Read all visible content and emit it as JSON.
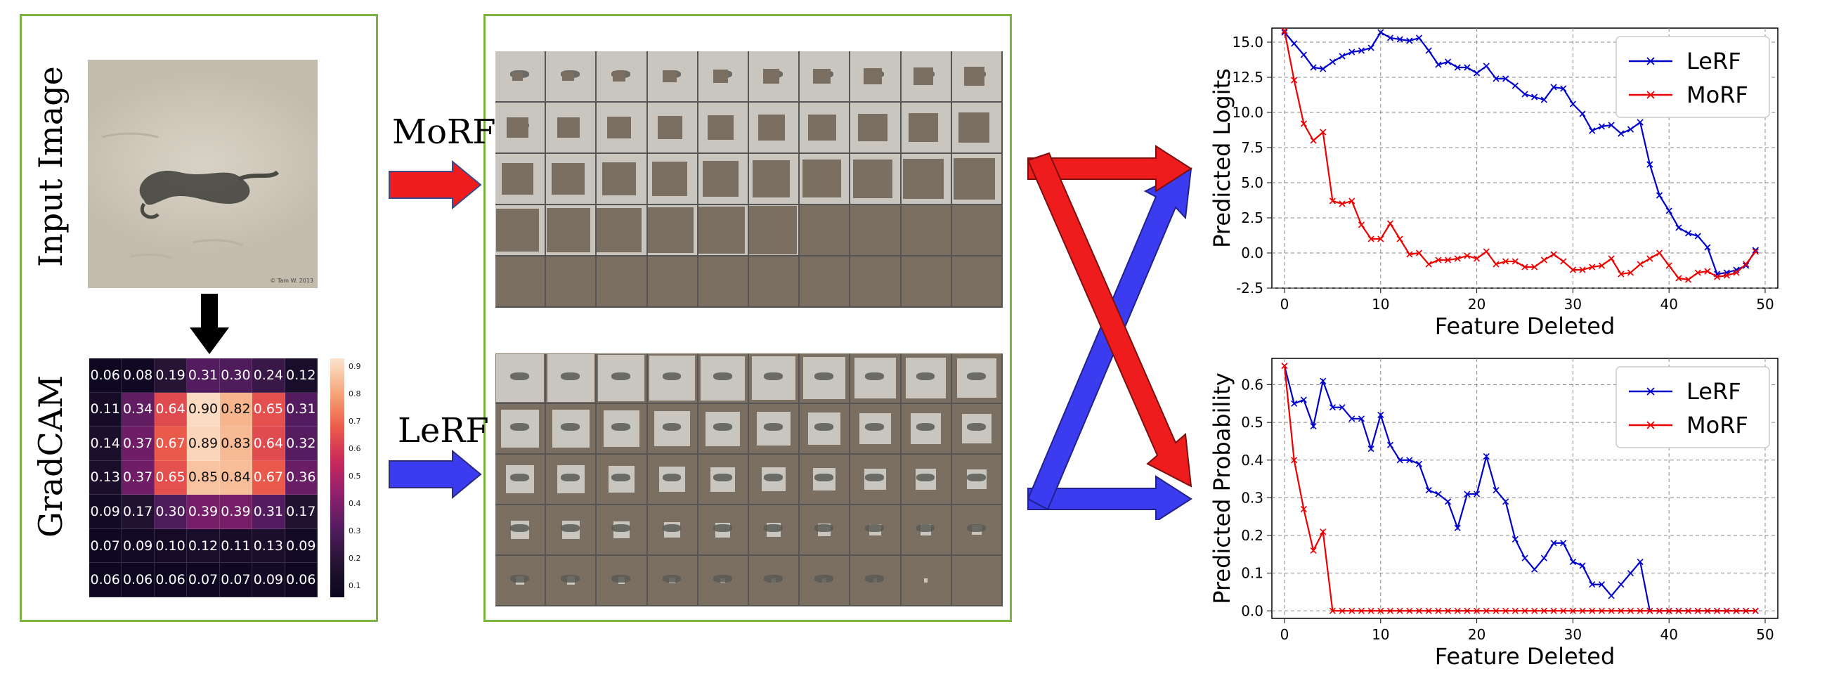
{
  "input_image_label": "Input Image",
  "gradcam_label": "GradCAM",
  "morf_arrow_label": "MoRF",
  "lerf_arrow_label": "LeRF",
  "photo_watermark": "© Tam W. 2013",
  "heatmap": {
    "values": [
      [
        "0.06",
        "0.08",
        "0.19",
        "0.31",
        "0.30",
        "0.24",
        "0.12"
      ],
      [
        "0.11",
        "0.34",
        "0.64",
        "0.90",
        "0.82",
        "0.65",
        "0.31"
      ],
      [
        "0.14",
        "0.37",
        "0.67",
        "0.89",
        "0.83",
        "0.64",
        "0.32"
      ],
      [
        "0.13",
        "0.37",
        "0.65",
        "0.85",
        "0.84",
        "0.67",
        "0.36"
      ],
      [
        "0.09",
        "0.17",
        "0.30",
        "0.39",
        "0.39",
        "0.31",
        "0.17"
      ],
      [
        "0.07",
        "0.09",
        "0.10",
        "0.12",
        "0.11",
        "0.13",
        "0.09"
      ],
      [
        "0.06",
        "0.06",
        "0.06",
        "0.07",
        "0.07",
        "0.09",
        "0.06"
      ]
    ],
    "colorbar_ticks": [
      "0.9",
      "0.8",
      "0.7",
      "0.6",
      "0.5",
      "0.4",
      "0.3",
      "0.2",
      "0.1"
    ]
  },
  "colors": {
    "lerf": "#0000cc",
    "morf": "#ee0000",
    "panel_border": "#7cb342",
    "arrow_red": "#ee1c1c",
    "arrow_blue": "#3b3bf0"
  },
  "chart_data": [
    {
      "type": "line",
      "xlabel": "Feature Deleted",
      "ylabel": "Predicted Logits",
      "xlim": [
        0,
        50
      ],
      "ylim": [
        -2.5,
        16
      ],
      "xticks": [
        "0",
        "10",
        "20",
        "30",
        "40",
        "50"
      ],
      "yticks": [
        "15.0",
        "12.5",
        "10.0",
        "7.5",
        "5.0",
        "2.5",
        "0.0",
        "-2.5"
      ],
      "legend_position": "top-right",
      "grid": true,
      "series": [
        {
          "name": "LeRF",
          "color": "#0000cc",
          "x": [
            0,
            1,
            2,
            3,
            4,
            5,
            6,
            7,
            8,
            9,
            10,
            11,
            12,
            13,
            14,
            15,
            16,
            17,
            18,
            19,
            20,
            21,
            22,
            23,
            24,
            25,
            26,
            27,
            28,
            29,
            30,
            31,
            32,
            33,
            34,
            35,
            36,
            37,
            38,
            39,
            40,
            41,
            42,
            43,
            44,
            45,
            46,
            47,
            48,
            49
          ],
          "values": [
            15.7,
            14.9,
            14.1,
            13.2,
            13.1,
            13.6,
            14.0,
            14.3,
            14.4,
            14.6,
            15.7,
            15.3,
            15.2,
            15.1,
            15.3,
            14.4,
            13.4,
            13.6,
            13.2,
            13.2,
            12.8,
            13.3,
            12.4,
            12.4,
            11.9,
            11.3,
            11.1,
            10.9,
            11.8,
            11.7,
            10.6,
            9.9,
            8.7,
            9.0,
            9.1,
            8.5,
            8.8,
            9.3,
            6.3,
            4.1,
            3.0,
            1.8,
            1.4,
            1.2,
            0.4,
            -1.5,
            -1.4,
            -1.2,
            -0.9,
            0.2
          ]
        },
        {
          "name": "MoRF",
          "color": "#ee0000",
          "x": [
            0,
            1,
            2,
            3,
            4,
            5,
            6,
            7,
            8,
            9,
            10,
            11,
            12,
            13,
            14,
            15,
            16,
            17,
            18,
            19,
            20,
            21,
            22,
            23,
            24,
            25,
            26,
            27,
            28,
            29,
            30,
            31,
            32,
            33,
            34,
            35,
            36,
            37,
            38,
            39,
            40,
            41,
            42,
            43,
            44,
            45,
            46,
            47,
            48,
            49
          ],
          "values": [
            15.8,
            12.3,
            9.2,
            8.0,
            8.6,
            3.7,
            3.5,
            3.7,
            2.0,
            1.0,
            1.0,
            2.1,
            1.0,
            -0.1,
            0.0,
            -0.8,
            -0.5,
            -0.5,
            -0.4,
            -0.2,
            -0.4,
            0.1,
            -0.8,
            -0.6,
            -0.6,
            -1.0,
            -1.0,
            -0.5,
            -0.1,
            -0.6,
            -1.2,
            -1.2,
            -1.0,
            -0.9,
            -0.4,
            -1.5,
            -1.4,
            -0.8,
            -0.4,
            0.0,
            -0.9,
            -1.8,
            -1.9,
            -1.4,
            -1.3,
            -1.7,
            -1.6,
            -1.4,
            -0.8,
            0.1
          ]
        }
      ]
    },
    {
      "type": "line",
      "xlabel": "Feature Deleted",
      "ylabel": "Predicted Probability",
      "xlim": [
        0,
        50
      ],
      "ylim": [
        -0.02,
        0.67
      ],
      "xticks": [
        "0",
        "10",
        "20",
        "30",
        "40",
        "50"
      ],
      "yticks": [
        "0.6",
        "0.5",
        "0.4",
        "0.3",
        "0.2",
        "0.1",
        "0.0"
      ],
      "legend_position": "top-right",
      "grid": true,
      "series": [
        {
          "name": "LeRF",
          "color": "#0000cc",
          "x": [
            0,
            1,
            2,
            3,
            4,
            5,
            6,
            7,
            8,
            9,
            10,
            11,
            12,
            13,
            14,
            15,
            16,
            17,
            18,
            19,
            20,
            21,
            22,
            23,
            24,
            25,
            26,
            27,
            28,
            29,
            30,
            31,
            32,
            33,
            34,
            35,
            36,
            37,
            38,
            39,
            40,
            41,
            42,
            43,
            44,
            45,
            46,
            47,
            48,
            49
          ],
          "values": [
            0.65,
            0.55,
            0.56,
            0.49,
            0.61,
            0.54,
            0.54,
            0.51,
            0.51,
            0.43,
            0.52,
            0.44,
            0.4,
            0.4,
            0.39,
            0.32,
            0.31,
            0.29,
            0.22,
            0.31,
            0.31,
            0.41,
            0.32,
            0.29,
            0.19,
            0.14,
            0.11,
            0.14,
            0.18,
            0.18,
            0.13,
            0.12,
            0.07,
            0.07,
            0.04,
            0.07,
            0.1,
            0.13,
            0.0,
            0.0,
            0.0,
            0.0,
            0.0,
            0.0,
            0.0,
            0.0,
            0.0,
            0.0,
            0.0,
            0.0
          ]
        },
        {
          "name": "MoRF",
          "color": "#ee0000",
          "x": [
            0,
            1,
            2,
            3,
            4,
            5,
            6,
            7,
            8,
            9,
            10,
            11,
            12,
            13,
            14,
            15,
            16,
            17,
            18,
            19,
            20,
            21,
            22,
            23,
            24,
            25,
            26,
            27,
            28,
            29,
            30,
            31,
            32,
            33,
            34,
            35,
            36,
            37,
            38,
            39,
            40,
            41,
            42,
            43,
            44,
            45,
            46,
            47,
            48,
            49
          ],
          "values": [
            0.65,
            0.4,
            0.27,
            0.16,
            0.21,
            0.0,
            0.0,
            0.0,
            0.0,
            0.0,
            0.0,
            0.0,
            0.0,
            0.0,
            0.0,
            0.0,
            0.0,
            0.0,
            0.0,
            0.0,
            0.0,
            0.0,
            0.0,
            0.0,
            0.0,
            0.0,
            0.0,
            0.0,
            0.0,
            0.0,
            0.0,
            0.0,
            0.0,
            0.0,
            0.0,
            0.0,
            0.0,
            0.0,
            0.0,
            0.0,
            0.0,
            0.0,
            0.0,
            0.0,
            0.0,
            0.0,
            0.0,
            0.0,
            0.0,
            0.0
          ]
        }
      ]
    }
  ]
}
